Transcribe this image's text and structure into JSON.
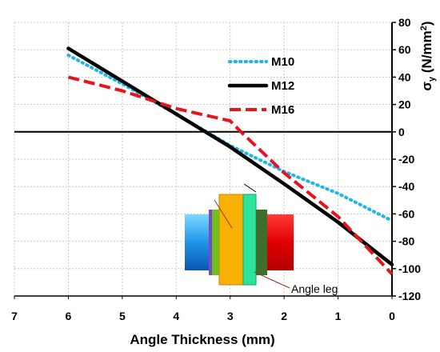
{
  "chart_data": {
    "type": "line",
    "xlabel": "Angle Thickness (mm)",
    "ylabel": "σy (N/mm²)",
    "ylabel_parts": {
      "sym": "σ",
      "sub": "y",
      "open": " (N/mm",
      "sup": "2",
      "close": ")"
    },
    "xlim": [
      7,
      0
    ],
    "ylim": [
      -120,
      80
    ],
    "x_reversed": true,
    "grid": true,
    "legend_position": "top-right",
    "x_ticks": [
      7,
      6,
      5,
      4,
      3,
      2,
      1,
      0
    ],
    "y_ticks": [
      80,
      60,
      40,
      20,
      0,
      -20,
      -40,
      -60,
      -80,
      -100,
      -120
    ],
    "series": [
      {
        "name": "M10",
        "color": "#1fb6e6",
        "style": "dotted",
        "x": [
          6,
          5,
          4,
          3,
          2,
          1,
          0
        ],
        "y": [
          56,
          35,
          13,
          -10,
          -29,
          -45,
          -65
        ]
      },
      {
        "name": "M12",
        "color": "#000000",
        "style": "solid",
        "x": [
          6,
          5,
          4,
          3,
          2,
          1,
          0
        ],
        "y": [
          61,
          37,
          13,
          -11,
          -38,
          -66,
          -97
        ]
      },
      {
        "name": "M16",
        "color": "#e8141b",
        "style": "dashed",
        "x": [
          6,
          5,
          4,
          3,
          2.8,
          2,
          1,
          0
        ],
        "y": [
          40,
          30,
          17,
          8,
          0,
          -30,
          -62,
          -104
        ]
      }
    ],
    "annotations": [
      {
        "text": "Angle leg"
      }
    ]
  }
}
